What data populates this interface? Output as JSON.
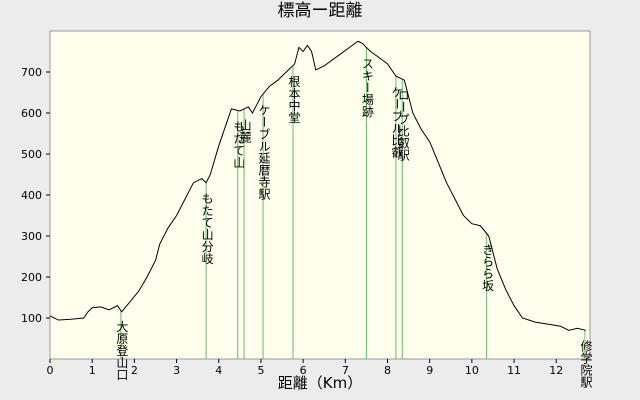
{
  "chart_data": {
    "type": "line",
    "title": "標高ー距離",
    "x_label": "距離（Km）",
    "x": [
      0,
      0.2,
      0.5,
      0.8,
      0.9,
      1.0,
      1.2,
      1.4,
      1.6,
      1.7,
      1.9,
      2.1,
      2.3,
      2.5,
      2.6,
      2.8,
      3.0,
      3.2,
      3.4,
      3.6,
      3.7,
      3.8,
      4.0,
      4.2,
      4.3,
      4.5,
      4.7,
      4.8,
      5.0,
      5.2,
      5.4,
      5.6,
      5.8,
      5.9,
      6.0,
      6.1,
      6.2,
      6.3,
      6.5,
      6.7,
      6.9,
      7.1,
      7.3,
      7.4,
      7.6,
      7.8,
      8.0,
      8.2,
      8.4,
      8.6,
      8.8,
      9.0,
      9.2,
      9.4,
      9.6,
      9.8,
      10.0,
      10.2,
      10.4,
      10.6,
      10.8,
      11.0,
      11.2,
      11.5,
      11.8,
      12.1,
      12.3,
      12.5,
      12.7
    ],
    "values": [
      105,
      95,
      97,
      100,
      115,
      125,
      127,
      120,
      130,
      115,
      140,
      165,
      200,
      240,
      280,
      320,
      350,
      390,
      430,
      440,
      430,
      450,
      520,
      580,
      610,
      605,
      615,
      600,
      640,
      665,
      680,
      700,
      720,
      760,
      750,
      765,
      750,
      705,
      715,
      730,
      745,
      760,
      775,
      770,
      750,
      735,
      720,
      690,
      680,
      600,
      560,
      530,
      480,
      430,
      390,
      350,
      330,
      325,
      300,
      220,
      170,
      130,
      100,
      90,
      85,
      80,
      70,
      75,
      70
    ],
    "color": "#000000",
    "markers": [
      {
        "label": "大原登山口",
        "x": 1.68
      },
      {
        "label": "もたて山分岐",
        "x": 3.7
      },
      {
        "label": "もたて山",
        "x": 4.45
      },
      {
        "label": "山麓",
        "x": 4.6
      },
      {
        "label": "ケーブル延暦寺駅",
        "x": 5.05
      },
      {
        "label": "根本中堂",
        "x": 5.76
      },
      {
        "label": "スキー場跡",
        "x": 7.5
      },
      {
        "label": "ケーブル比叡",
        "x": 8.2
      },
      {
        "label": "ロープ比叡駅",
        "x": 8.35
      },
      {
        "label": "きらら坂",
        "x": 10.35
      },
      {
        "label": "修学院駅",
        "x": 12.68
      }
    ],
    "marker_color": "#66bb66",
    "xlim": [
      0,
      12.8
    ],
    "xticks": [
      0,
      1,
      2,
      3,
      4,
      5,
      6,
      7,
      8,
      9,
      10,
      11,
      12
    ],
    "ylim": [
      0,
      800
    ],
    "yticks": [
      100,
      200,
      300,
      400,
      500,
      600,
      700
    ]
  }
}
